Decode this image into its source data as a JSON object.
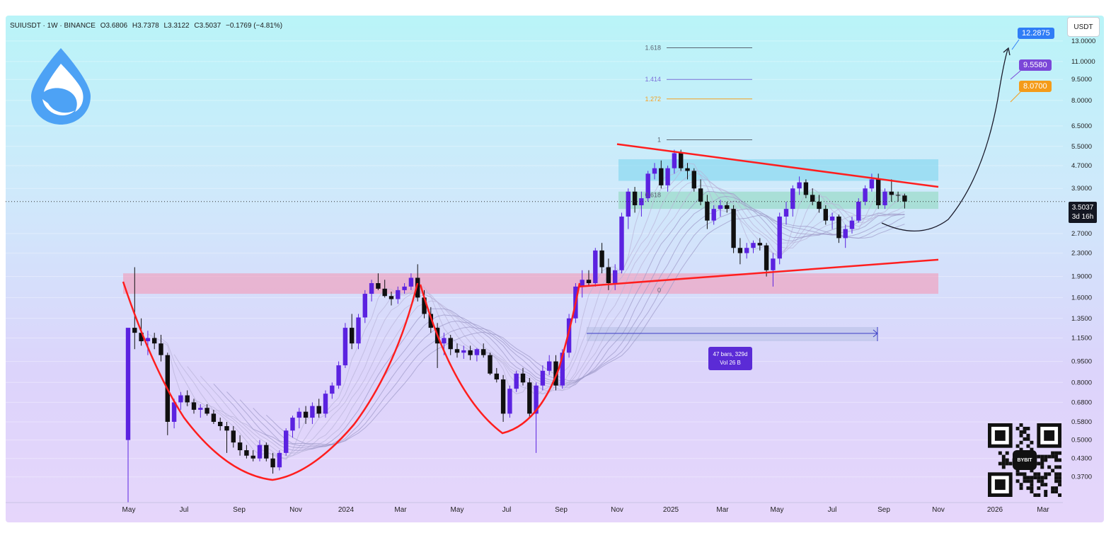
{
  "header": {
    "symbol": "SUIUSDT · 1W · BINANCE",
    "open": "O3.6806",
    "high": "H3.7378",
    "low": "L3.3122",
    "close": "C3.5037",
    "change": "−0.1769 (−4.81%)"
  },
  "currency": "USDT",
  "price_tags": {
    "target1": "12.2875",
    "target2": "9.5580",
    "target3": "8.0700",
    "last_price": "3.5037",
    "countdown": "3d 16h"
  },
  "measure": {
    "line1": "47 bars, 329d",
    "line2": "Vol 26 B"
  },
  "qr_badge": "BYBIT",
  "colors": {
    "bull": "#5b22e0",
    "bear": "#101010",
    "pattern": "#ff1e1e",
    "target1": "#2f7df6",
    "target2": "#7b47d8",
    "target3": "#f49b19"
  },
  "chart_data": {
    "type": "candlestick",
    "y_axis": {
      "scale": "log",
      "range": [
        0.3,
        16
      ],
      "ticks": [
        "13.0000",
        "11.0000",
        "9.5000",
        "8.0000",
        "6.5000",
        "5.5000",
        "4.7000",
        "3.9000",
        "2.7000",
        "2.3000",
        "1.9000",
        "1.6000",
        "1.3500",
        "1.1500",
        "0.9500",
        "0.8000",
        "0.6800",
        "0.5800",
        "0.5000",
        "0.4300",
        "0.3700"
      ]
    },
    "x_axis": {
      "ticks": [
        "May",
        "Jul",
        "Sep",
        "Nov",
        "2024",
        "Mar",
        "May",
        "Jul",
        "Sep",
        "Nov",
        "2025",
        "Mar",
        "May",
        "Jul",
        "Sep",
        "Nov",
        "2026",
        "Mar"
      ]
    },
    "candles_ohlc": [
      [
        0.5,
        0.52,
        0.3,
        1.25
      ],
      [
        1.25,
        2.05,
        1.05,
        1.2
      ],
      [
        1.2,
        1.35,
        1.08,
        1.12
      ],
      [
        1.12,
        1.22,
        1.0,
        1.15
      ],
      [
        1.15,
        1.2,
        1.05,
        1.1
      ],
      [
        1.1,
        1.18,
        0.95,
        1.0
      ],
      [
        1.0,
        1.02,
        0.52,
        0.58
      ],
      [
        0.58,
        0.7,
        0.55,
        0.68
      ],
      [
        0.68,
        0.74,
        0.64,
        0.72
      ],
      [
        0.72,
        0.75,
        0.66,
        0.68
      ],
      [
        0.68,
        0.7,
        0.62,
        0.64
      ],
      [
        0.64,
        0.67,
        0.6,
        0.65
      ],
      [
        0.65,
        0.67,
        0.61,
        0.62
      ],
      [
        0.62,
        0.64,
        0.57,
        0.58
      ],
      [
        0.58,
        0.6,
        0.54,
        0.56
      ],
      [
        0.56,
        0.58,
        0.45,
        0.54
      ],
      [
        0.54,
        0.56,
        0.47,
        0.49
      ],
      [
        0.49,
        0.52,
        0.44,
        0.46
      ],
      [
        0.46,
        0.48,
        0.43,
        0.44
      ],
      [
        0.44,
        0.46,
        0.42,
        0.43
      ],
      [
        0.43,
        0.5,
        0.42,
        0.48
      ],
      [
        0.48,
        0.49,
        0.42,
        0.43
      ],
      [
        0.43,
        0.45,
        0.38,
        0.4
      ],
      [
        0.4,
        0.46,
        0.39,
        0.45
      ],
      [
        0.45,
        0.55,
        0.44,
        0.54
      ],
      [
        0.54,
        0.61,
        0.51,
        0.6
      ],
      [
        0.6,
        0.65,
        0.55,
        0.63
      ],
      [
        0.63,
        0.66,
        0.57,
        0.6
      ],
      [
        0.6,
        0.68,
        0.57,
        0.66
      ],
      [
        0.66,
        0.7,
        0.6,
        0.62
      ],
      [
        0.62,
        0.75,
        0.6,
        0.73
      ],
      [
        0.73,
        0.8,
        0.7,
        0.78
      ],
      [
        0.78,
        0.95,
        0.76,
        0.92
      ],
      [
        0.92,
        1.3,
        0.9,
        1.25
      ],
      [
        1.25,
        1.4,
        1.05,
        1.1
      ],
      [
        1.1,
        1.4,
        1.05,
        1.36
      ],
      [
        1.36,
        1.7,
        1.3,
        1.65
      ],
      [
        1.65,
        1.85,
        1.55,
        1.8
      ],
      [
        1.8,
        1.95,
        1.7,
        1.72
      ],
      [
        1.72,
        1.85,
        1.6,
        1.62
      ],
      [
        1.62,
        1.68,
        1.5,
        1.58
      ],
      [
        1.58,
        1.75,
        1.52,
        1.7
      ],
      [
        1.7,
        1.8,
        1.65,
        1.75
      ],
      [
        1.75,
        1.95,
        1.7,
        1.88
      ],
      [
        1.88,
        2.1,
        1.55,
        1.6
      ],
      [
        1.6,
        1.7,
        1.35,
        1.4
      ],
      [
        1.4,
        1.48,
        1.2,
        1.25
      ],
      [
        1.25,
        1.3,
        0.9,
        1.1
      ],
      [
        1.1,
        1.2,
        1.0,
        1.15
      ],
      [
        1.15,
        1.18,
        1.0,
        1.05
      ],
      [
        1.05,
        1.1,
        0.98,
        1.02
      ],
      [
        1.02,
        1.08,
        0.97,
        1.04
      ],
      [
        1.04,
        1.08,
        0.96,
        1.0
      ],
      [
        1.0,
        1.06,
        0.95,
        1.05
      ],
      [
        1.05,
        1.1,
        0.98,
        1.0
      ],
      [
        1.0,
        1.02,
        0.85,
        0.86
      ],
      [
        0.86,
        0.9,
        0.8,
        0.82
      ],
      [
        0.82,
        0.85,
        0.58,
        0.62
      ],
      [
        0.62,
        0.78,
        0.6,
        0.76
      ],
      [
        0.76,
        0.88,
        0.74,
        0.86
      ],
      [
        0.86,
        0.9,
        0.78,
        0.8
      ],
      [
        0.8,
        0.83,
        0.6,
        0.62
      ],
      [
        0.62,
        0.8,
        0.45,
        0.78
      ],
      [
        0.78,
        0.92,
        0.75,
        0.88
      ],
      [
        0.88,
        1.0,
        0.85,
        0.95
      ],
      [
        0.95,
        1.0,
        0.75,
        0.78
      ],
      [
        0.78,
        1.05,
        0.76,
        1.02
      ],
      [
        1.02,
        1.4,
        0.98,
        1.35
      ],
      [
        1.35,
        1.8,
        1.3,
        1.75
      ],
      [
        1.75,
        2.0,
        1.6,
        1.85
      ],
      [
        1.85,
        2.0,
        1.75,
        1.8
      ],
      [
        1.8,
        2.4,
        1.75,
        2.35
      ],
      [
        2.35,
        2.5,
        1.95,
        2.05
      ],
      [
        2.05,
        2.2,
        1.7,
        1.8
      ],
      [
        1.8,
        2.1,
        1.7,
        2.0
      ],
      [
        2.0,
        3.2,
        1.95,
        3.1
      ],
      [
        3.1,
        3.9,
        2.8,
        3.8
      ],
      [
        3.8,
        3.95,
        3.2,
        3.4
      ],
      [
        3.4,
        3.8,
        3.1,
        3.6
      ],
      [
        3.6,
        4.5,
        3.5,
        4.4
      ],
      [
        4.4,
        4.8,
        4.2,
        4.6
      ],
      [
        4.6,
        4.9,
        3.9,
        4.0
      ],
      [
        4.0,
        4.7,
        3.8,
        4.6
      ],
      [
        4.6,
        5.35,
        4.4,
        5.2
      ],
      [
        5.2,
        5.35,
        4.5,
        4.6
      ],
      [
        4.6,
        4.8,
        4.2,
        4.5
      ],
      [
        4.5,
        4.6,
        3.8,
        3.9
      ],
      [
        3.9,
        4.2,
        3.4,
        3.5
      ],
      [
        3.5,
        3.7,
        2.8,
        3.0
      ],
      [
        3.0,
        3.4,
        2.9,
        3.3
      ],
      [
        3.3,
        3.55,
        3.1,
        3.4
      ],
      [
        3.4,
        3.5,
        3.2,
        3.3
      ],
      [
        3.3,
        3.4,
        2.3,
        2.4
      ],
      [
        2.4,
        2.6,
        2.1,
        2.3
      ],
      [
        2.3,
        2.5,
        2.2,
        2.4
      ],
      [
        2.4,
        2.55,
        2.3,
        2.5
      ],
      [
        2.5,
        2.6,
        2.35,
        2.45
      ],
      [
        2.45,
        2.5,
        1.9,
        2.0
      ],
      [
        2.0,
        2.3,
        1.75,
        2.2
      ],
      [
        2.2,
        3.2,
        2.1,
        3.1
      ],
      [
        3.1,
        3.5,
        2.9,
        3.3
      ],
      [
        3.3,
        4.0,
        3.1,
        3.9
      ],
      [
        3.9,
        4.3,
        3.7,
        4.1
      ],
      [
        4.1,
        4.2,
        3.6,
        3.7
      ],
      [
        3.7,
        3.9,
        3.4,
        3.5
      ],
      [
        3.5,
        3.7,
        3.2,
        3.3
      ],
      [
        3.3,
        3.4,
        2.9,
        3.0
      ],
      [
        3.0,
        3.2,
        2.8,
        3.1
      ],
      [
        3.1,
        3.15,
        2.5,
        2.6
      ],
      [
        2.6,
        2.9,
        2.4,
        2.8
      ],
      [
        2.8,
        3.1,
        2.7,
        3.0
      ],
      [
        3.0,
        3.6,
        2.95,
        3.5
      ],
      [
        3.5,
        4.0,
        3.4,
        3.9
      ],
      [
        3.9,
        4.4,
        3.8,
        4.2
      ],
      [
        4.2,
        4.4,
        3.3,
        3.4
      ],
      [
        3.4,
        3.9,
        3.3,
        3.8
      ],
      [
        3.8,
        4.2,
        3.5,
        3.7
      ],
      [
        3.7,
        3.8,
        3.5,
        3.68
      ],
      [
        3.6806,
        3.7378,
        3.3122,
        3.5037
      ]
    ],
    "fib_levels": [
      {
        "label": "1.618",
        "value": 12.3
      },
      {
        "label": "1.414",
        "value": 9.5
      },
      {
        "label": "1.272",
        "value": 8.1
      },
      {
        "label": "1",
        "value": 5.8
      },
      {
        "label": "0.618",
        "value": 3.7
      },
      {
        "label": "0",
        "value": 1.7
      }
    ],
    "zones": [
      {
        "name": "resistance",
        "from": 4.15,
        "to": 4.95,
        "color": "#7fd6ee"
      },
      {
        "name": "retest",
        "from": 3.3,
        "to": 3.8,
        "color": "#8fd8c0"
      },
      {
        "name": "breakout-support",
        "from": 1.65,
        "to": 1.95,
        "color": "#f39ab8"
      }
    ],
    "targets": [
      12.2875,
      9.558,
      8.07
    ],
    "last_price": 3.5037
  }
}
